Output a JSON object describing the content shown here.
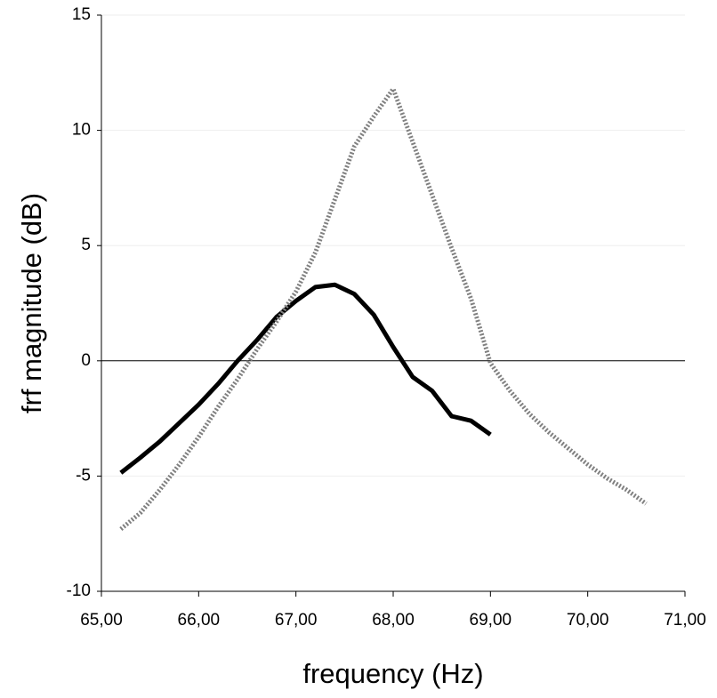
{
  "chart_data": {
    "type": "line",
    "x_label": "frequency (Hz)",
    "y_label": "frf magnitude (dB)",
    "xlim": [
      65,
      71
    ],
    "xticks": [
      {
        "value": 65,
        "label": "65,00"
      },
      {
        "value": 66,
        "label": "66,00"
      },
      {
        "value": 67,
        "label": "67,00"
      },
      {
        "value": 68,
        "label": "68,00"
      },
      {
        "value": 69,
        "label": "69,00"
      },
      {
        "value": 70,
        "label": "70,00"
      },
      {
        "value": 71,
        "label": "71,00"
      }
    ],
    "ylim": [
      -10,
      15
    ],
    "yticks": [
      15,
      10,
      5,
      0,
      -5,
      -10
    ],
    "grid": true,
    "series": [
      {
        "color": "#000000",
        "style": "solid",
        "x": [
          65.2,
          65.4,
          65.6,
          65.8,
          66.0,
          66.2,
          66.4,
          66.6,
          66.8,
          67.0,
          67.2,
          67.4,
          67.6,
          67.8,
          68.0,
          68.2,
          68.4,
          68.6,
          68.8,
          69.0
        ],
        "values": [
          -4.86,
          -4.2,
          -3.5,
          -2.7,
          -1.9,
          -1.0,
          0.0,
          0.9,
          1.9,
          2.6,
          3.2,
          3.3,
          2.9,
          2.0,
          0.6,
          -0.7,
          -1.3,
          -2.4,
          -2.6,
          -3.2
        ]
      },
      {
        "color": "#808080",
        "style": "dotted",
        "x": [
          65.2,
          65.4,
          65.6,
          65.8,
          66.0,
          66.2,
          66.4,
          66.6,
          66.8,
          67.0,
          67.2,
          67.4,
          67.6,
          67.8,
          68.0,
          68.2,
          68.4,
          68.6,
          68.8,
          69.0,
          69.2,
          69.4,
          69.6,
          69.8,
          70.0,
          70.2,
          70.4,
          70.6
        ],
        "values": [
          -7.3,
          -6.6,
          -5.6,
          -4.5,
          -3.3,
          -2.0,
          -0.8,
          0.5,
          1.7,
          3.0,
          4.7,
          7.0,
          9.3,
          10.6,
          11.8,
          9.5,
          7.2,
          4.9,
          2.7,
          -0.1,
          -1.3,
          -2.3,
          -3.1,
          -3.8,
          -4.5,
          -5.1,
          -5.6,
          -6.2
        ]
      }
    ]
  }
}
